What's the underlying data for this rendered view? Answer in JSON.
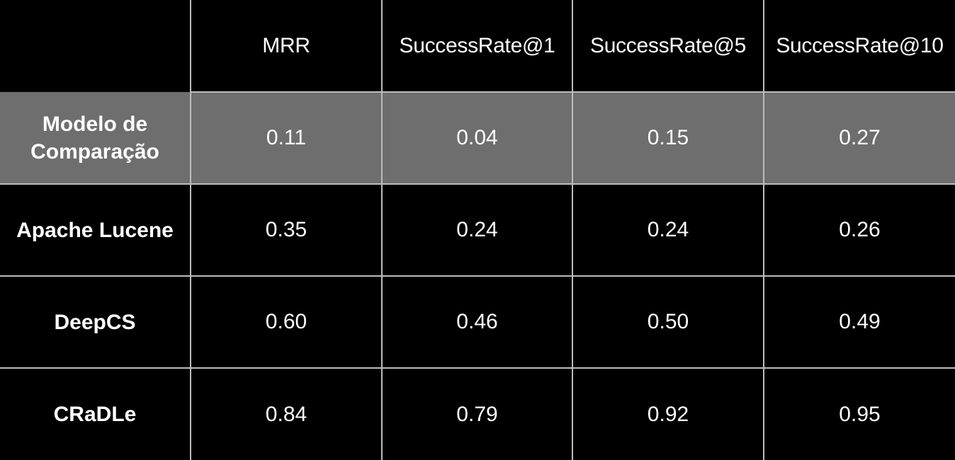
{
  "chart_data": {
    "type": "table",
    "columns": [
      "",
      "MRR",
      "SuccessRate@1",
      "SuccessRate@5",
      "SuccessRate@10"
    ],
    "rows": [
      {
        "label": "Modelo de Comparação",
        "values": [
          "0.11",
          "0.04",
          "0.15",
          "0.27"
        ],
        "highlighted": true
      },
      {
        "label": "Apache Lucene",
        "values": [
          "0.35",
          "0.24",
          "0.24",
          "0.26"
        ],
        "highlighted": false
      },
      {
        "label": "DeepCS",
        "values": [
          "0.60",
          "0.46",
          "0.50",
          "0.49"
        ],
        "highlighted": false
      },
      {
        "label": "CRaDLe",
        "values": [
          "0.84",
          "0.79",
          "0.92",
          "0.95"
        ],
        "highlighted": false
      }
    ]
  },
  "colors": {
    "background": "#000000",
    "highlight_row": "#6e6e6e",
    "grid": "#bdbdbd",
    "text": "#ffffff"
  }
}
